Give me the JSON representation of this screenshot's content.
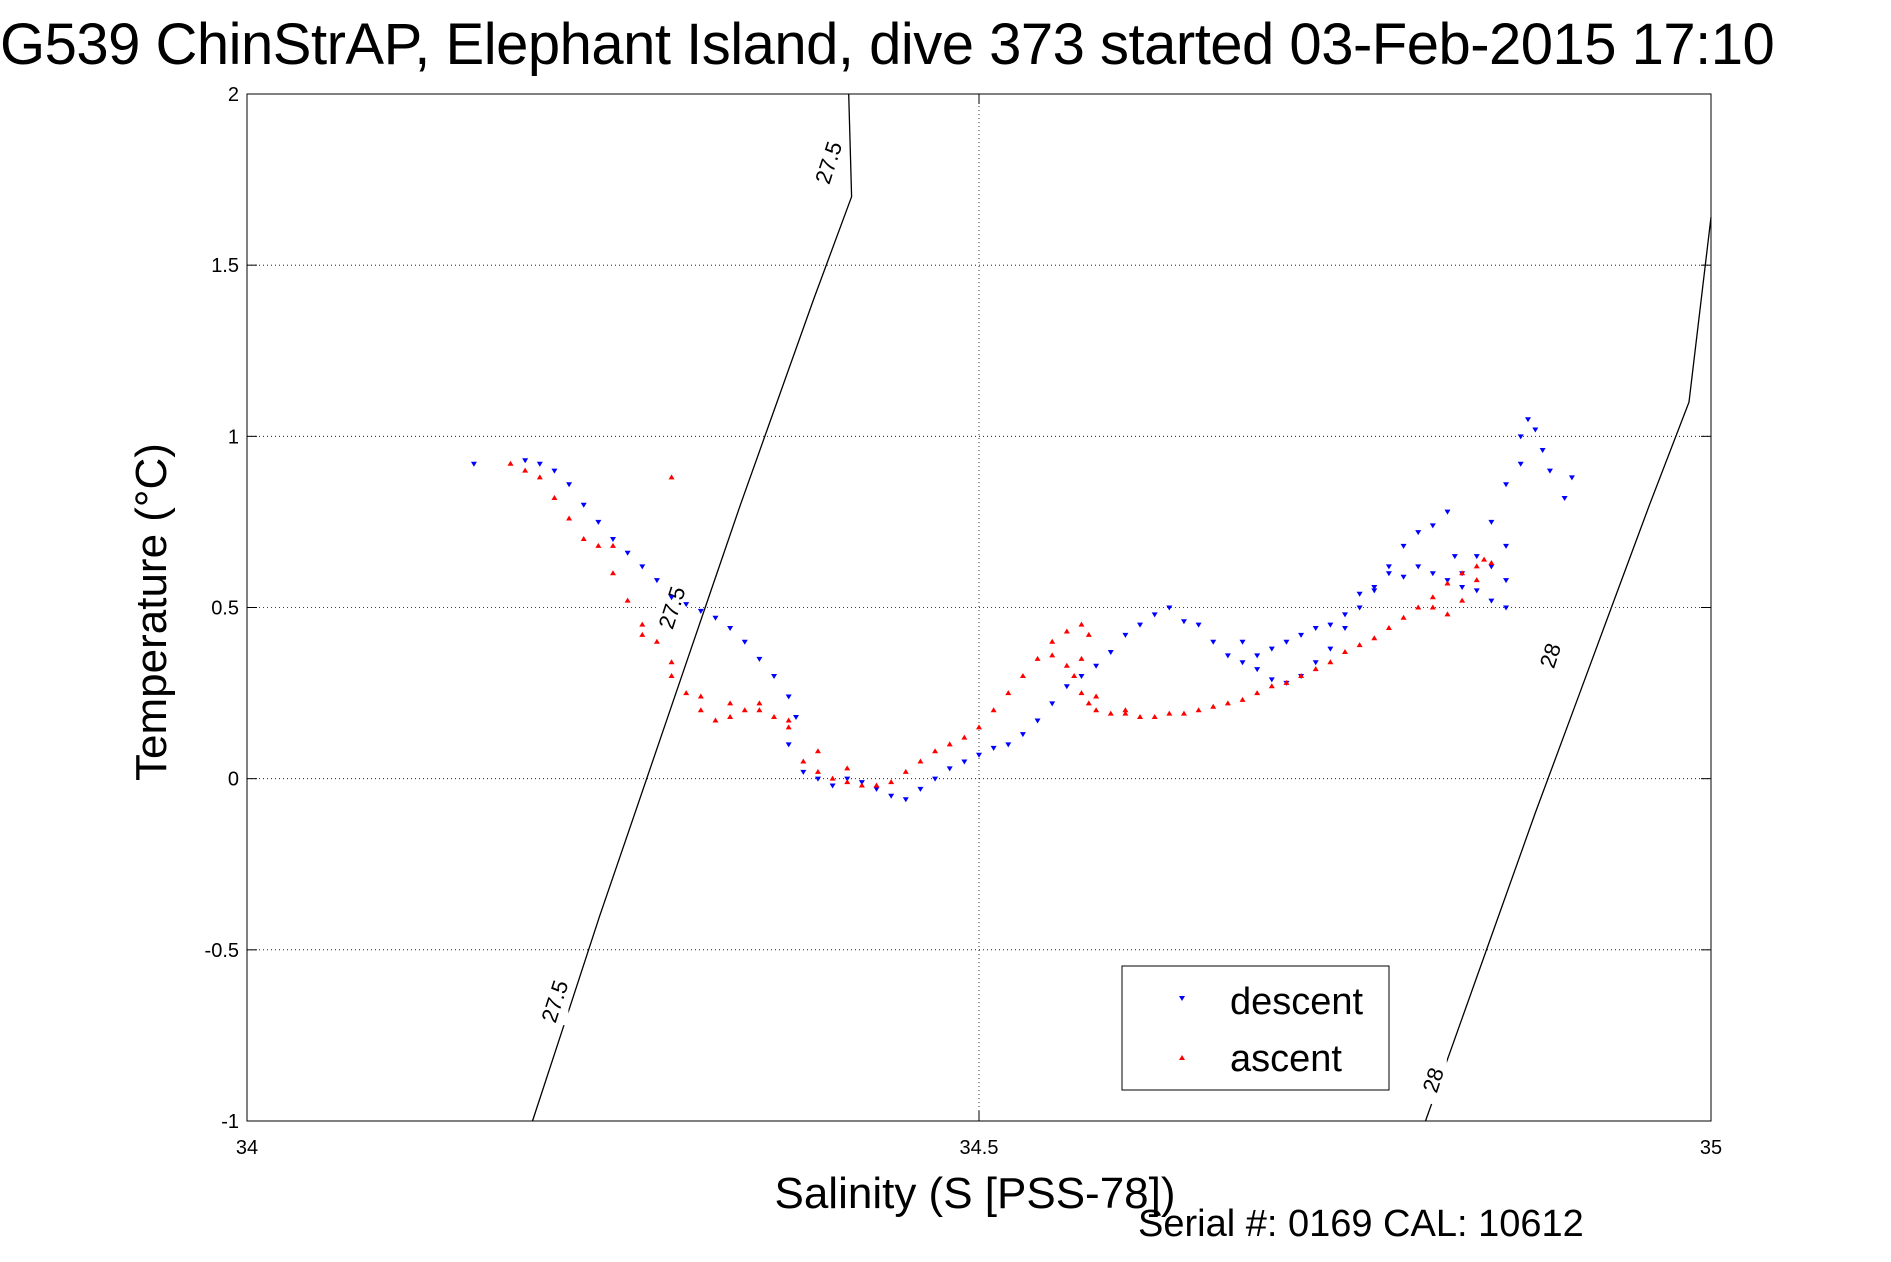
{
  "title": "G539 ChinStrAP, Elephant Island, dive 373 started 03-Feb-2015 17:10",
  "footer": "Serial #: 0169 CAL: 10612",
  "chart_data": {
    "type": "scatter",
    "xlabel": "Salinity (S [PSS-78])",
    "ylabel": "Temperature (°C)",
    "xlim": [
      34,
      35
    ],
    "ylim": [
      -1,
      2
    ],
    "xticks": [
      34,
      34.5,
      35
    ],
    "xtick_labels": [
      "34",
      "34.5",
      "35"
    ],
    "yticks": [
      -1,
      -0.5,
      0,
      0.5,
      1,
      1.5,
      2
    ],
    "ytick_labels": [
      "-1",
      "-0.5",
      "0",
      "0.5",
      "1",
      "1.5",
      "2"
    ],
    "grid": true,
    "legend_position": "bottom-right",
    "isopycnals": [
      {
        "label": "27.5",
        "points": [
          [
            34.195,
            -1.0
          ],
          [
            34.218,
            -0.7
          ],
          [
            34.241,
            -0.4
          ],
          [
            34.265,
            -0.1
          ],
          [
            34.289,
            0.2
          ],
          [
            34.313,
            0.5
          ],
          [
            34.337,
            0.8
          ],
          [
            34.362,
            1.1
          ],
          [
            34.387,
            1.4
          ],
          [
            34.413,
            1.7
          ],
          [
            34.411,
            2.0
          ]
        ],
        "label_positions": [
          [
            34.21,
            -0.65
          ],
          [
            34.29,
            0.5
          ],
          [
            34.397,
            1.8
          ]
        ]
      },
      {
        "label": "28",
        "points": [
          [
            34.805,
            -1.0
          ],
          [
            34.83,
            -0.7
          ],
          [
            34.855,
            -0.4
          ],
          [
            34.88,
            -0.1
          ],
          [
            34.906,
            0.2
          ],
          [
            34.932,
            0.5
          ],
          [
            34.958,
            0.8
          ],
          [
            34.985,
            1.1
          ],
          [
            35.0,
            1.64
          ]
        ],
        "label_positions": [
          [
            34.81,
            -0.88
          ],
          [
            34.89,
            0.36
          ]
        ]
      }
    ],
    "series": [
      {
        "name": "descent",
        "color": "#0000ff",
        "marker": "triangle-down",
        "points": [
          [
            34.155,
            0.92
          ],
          [
            34.19,
            0.93
          ],
          [
            34.2,
            0.92
          ],
          [
            34.21,
            0.9
          ],
          [
            34.22,
            0.86
          ],
          [
            34.23,
            0.8
          ],
          [
            34.24,
            0.75
          ],
          [
            34.25,
            0.7
          ],
          [
            34.26,
            0.66
          ],
          [
            34.27,
            0.62
          ],
          [
            34.28,
            0.58
          ],
          [
            34.29,
            0.53
          ],
          [
            34.3,
            0.51
          ],
          [
            34.31,
            0.49
          ],
          [
            34.32,
            0.47
          ],
          [
            34.33,
            0.44
          ],
          [
            34.34,
            0.4
          ],
          [
            34.35,
            0.35
          ],
          [
            34.36,
            0.3
          ],
          [
            34.37,
            0.24
          ],
          [
            34.375,
            0.18
          ],
          [
            34.37,
            0.1
          ],
          [
            34.38,
            0.02
          ],
          [
            34.39,
            0.0
          ],
          [
            34.4,
            -0.02
          ],
          [
            34.41,
            0.0
          ],
          [
            34.42,
            -0.01
          ],
          [
            34.43,
            -0.03
          ],
          [
            34.44,
            -0.05
          ],
          [
            34.45,
            -0.06
          ],
          [
            34.46,
            -0.03
          ],
          [
            34.47,
            0.0
          ],
          [
            34.48,
            0.03
          ],
          [
            34.49,
            0.05
          ],
          [
            34.5,
            0.07
          ],
          [
            34.51,
            0.09
          ],
          [
            34.52,
            0.1
          ],
          [
            34.53,
            0.13
          ],
          [
            34.54,
            0.17
          ],
          [
            34.55,
            0.22
          ],
          [
            34.56,
            0.27
          ],
          [
            34.57,
            0.3
          ],
          [
            34.58,
            0.33
          ],
          [
            34.59,
            0.37
          ],
          [
            34.6,
            0.42
          ],
          [
            34.61,
            0.45
          ],
          [
            34.62,
            0.48
          ],
          [
            34.63,
            0.5
          ],
          [
            34.64,
            0.46
          ],
          [
            34.65,
            0.45
          ],
          [
            34.66,
            0.4
          ],
          [
            34.67,
            0.36
          ],
          [
            34.68,
            0.34
          ],
          [
            34.69,
            0.32
          ],
          [
            34.7,
            0.29
          ],
          [
            34.71,
            0.28
          ],
          [
            34.72,
            0.3
          ],
          [
            34.73,
            0.34
          ],
          [
            34.74,
            0.38
          ],
          [
            34.75,
            0.44
          ],
          [
            34.76,
            0.5
          ],
          [
            34.77,
            0.56
          ],
          [
            34.78,
            0.62
          ],
          [
            34.79,
            0.68
          ],
          [
            34.8,
            0.72
          ],
          [
            34.81,
            0.74
          ],
          [
            34.82,
            0.78
          ],
          [
            34.825,
            0.65
          ],
          [
            34.83,
            0.6
          ],
          [
            34.84,
            0.65
          ],
          [
            34.85,
            0.62
          ],
          [
            34.85,
            0.75
          ],
          [
            34.86,
            0.86
          ],
          [
            34.87,
            0.92
          ],
          [
            34.87,
            1.0
          ],
          [
            34.875,
            1.05
          ],
          [
            34.88,
            1.02
          ],
          [
            34.885,
            0.96
          ],
          [
            34.89,
            0.9
          ],
          [
            34.9,
            0.82
          ],
          [
            34.905,
            0.88
          ],
          [
            34.86,
            0.68
          ],
          [
            34.86,
            0.58
          ],
          [
            34.86,
            0.5
          ],
          [
            34.85,
            0.52
          ],
          [
            34.84,
            0.55
          ],
          [
            34.83,
            0.56
          ],
          [
            34.82,
            0.58
          ],
          [
            34.81,
            0.6
          ],
          [
            34.8,
            0.62
          ],
          [
            34.79,
            0.59
          ],
          [
            34.78,
            0.6
          ],
          [
            34.77,
            0.55
          ],
          [
            34.76,
            0.54
          ],
          [
            34.75,
            0.48
          ],
          [
            34.74,
            0.45
          ],
          [
            34.73,
            0.44
          ],
          [
            34.72,
            0.42
          ],
          [
            34.71,
            0.4
          ],
          [
            34.7,
            0.38
          ],
          [
            34.69,
            0.36
          ],
          [
            34.68,
            0.4
          ]
        ]
      },
      {
        "name": "ascent",
        "color": "#ff0000",
        "marker": "triangle-up",
        "points": [
          [
            34.18,
            0.92
          ],
          [
            34.19,
            0.9
          ],
          [
            34.2,
            0.88
          ],
          [
            34.21,
            0.82
          ],
          [
            34.22,
            0.76
          ],
          [
            34.23,
            0.7
          ],
          [
            34.24,
            0.68
          ],
          [
            34.25,
            0.6
          ],
          [
            34.26,
            0.52
          ],
          [
            34.27,
            0.45
          ],
          [
            34.28,
            0.4
          ],
          [
            34.29,
            0.3
          ],
          [
            34.3,
            0.25
          ],
          [
            34.31,
            0.2
          ],
          [
            34.32,
            0.17
          ],
          [
            34.33,
            0.18
          ],
          [
            34.34,
            0.2
          ],
          [
            34.35,
            0.22
          ],
          [
            34.36,
            0.18
          ],
          [
            34.37,
            0.15
          ],
          [
            34.38,
            0.05
          ],
          [
            34.39,
            0.02
          ],
          [
            34.4,
            0.0
          ],
          [
            34.41,
            -0.01
          ],
          [
            34.42,
            -0.02
          ],
          [
            34.43,
            -0.02
          ],
          [
            34.44,
            -0.01
          ],
          [
            34.45,
            0.02
          ],
          [
            34.46,
            0.05
          ],
          [
            34.47,
            0.08
          ],
          [
            34.48,
            0.1
          ],
          [
            34.49,
            0.12
          ],
          [
            34.5,
            0.15
          ],
          [
            34.51,
            0.2
          ],
          [
            34.52,
            0.25
          ],
          [
            34.53,
            0.3
          ],
          [
            34.54,
            0.35
          ],
          [
            34.55,
            0.4
          ],
          [
            34.56,
            0.43
          ],
          [
            34.57,
            0.45
          ],
          [
            34.575,
            0.42
          ],
          [
            34.57,
            0.35
          ],
          [
            34.565,
            0.3
          ],
          [
            34.57,
            0.25
          ],
          [
            34.575,
            0.22
          ],
          [
            34.58,
            0.2
          ],
          [
            34.59,
            0.19
          ],
          [
            34.6,
            0.19
          ],
          [
            34.61,
            0.18
          ],
          [
            34.62,
            0.18
          ],
          [
            34.63,
            0.19
          ],
          [
            34.64,
            0.19
          ],
          [
            34.65,
            0.2
          ],
          [
            34.66,
            0.21
          ],
          [
            34.67,
            0.22
          ],
          [
            34.68,
            0.23
          ],
          [
            34.69,
            0.25
          ],
          [
            34.7,
            0.27
          ],
          [
            34.71,
            0.28
          ],
          [
            34.72,
            0.3
          ],
          [
            34.73,
            0.32
          ],
          [
            34.74,
            0.34
          ],
          [
            34.75,
            0.37
          ],
          [
            34.76,
            0.39
          ],
          [
            34.77,
            0.41
          ],
          [
            34.78,
            0.44
          ],
          [
            34.79,
            0.47
          ],
          [
            34.8,
            0.5
          ],
          [
            34.81,
            0.53
          ],
          [
            34.82,
            0.57
          ],
          [
            34.83,
            0.6
          ],
          [
            34.84,
            0.62
          ],
          [
            34.845,
            0.64
          ],
          [
            34.29,
            0.88
          ],
          [
            34.25,
            0.68
          ],
          [
            34.27,
            0.42
          ],
          [
            34.29,
            0.34
          ],
          [
            34.31,
            0.24
          ],
          [
            34.33,
            0.22
          ],
          [
            34.35,
            0.2
          ],
          [
            34.37,
            0.17
          ],
          [
            34.39,
            0.08
          ],
          [
            34.41,
            0.03
          ],
          [
            34.55,
            0.36
          ],
          [
            34.56,
            0.33
          ],
          [
            34.58,
            0.24
          ],
          [
            34.6,
            0.2
          ],
          [
            34.81,
            0.5
          ],
          [
            34.82,
            0.48
          ],
          [
            34.83,
            0.52
          ],
          [
            34.84,
            0.58
          ],
          [
            34.85,
            0.63
          ]
        ]
      }
    ]
  }
}
